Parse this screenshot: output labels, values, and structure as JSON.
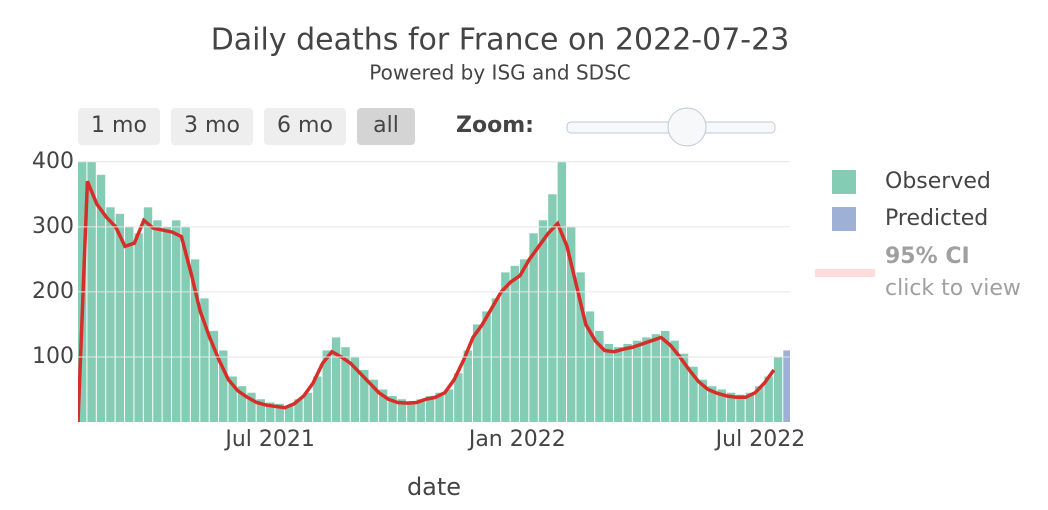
{
  "chart_data": {
    "type": "bar",
    "title": "Daily deaths for France on 2022-07-23",
    "subtitle": "Powered by ISG and SDSC",
    "buttons": [
      "1 mo",
      "3 mo",
      "6 mo",
      "all"
    ],
    "active_button": 3,
    "zoom_label": "Zoom:",
    "x_label": "date",
    "xlim": [
      "2021-02-08",
      "2022-07-23"
    ],
    "xticks": [
      {
        "value": "2021-07-01",
        "label": "Jul 2021"
      },
      {
        "value": "2022-01-01",
        "label": "Jan 2022"
      },
      {
        "value": "2022-07-01",
        "label": "Jul 2022"
      }
    ],
    "ylim": [
      0,
      415
    ],
    "yticks": [
      100,
      200,
      300,
      400
    ],
    "grid": true,
    "legend": "right",
    "x": [
      "2021-02-08",
      "2021-02-15",
      "2021-02-22",
      "2021-03-01",
      "2021-03-08",
      "2021-03-15",
      "2021-03-22",
      "2021-03-29",
      "2021-04-05",
      "2021-04-12",
      "2021-04-19",
      "2021-04-26",
      "2021-05-03",
      "2021-05-10",
      "2021-05-17",
      "2021-05-24",
      "2021-05-31",
      "2021-06-07",
      "2021-06-14",
      "2021-06-21",
      "2021-06-28",
      "2021-07-05",
      "2021-07-12",
      "2021-07-19",
      "2021-07-26",
      "2021-08-02",
      "2021-08-09",
      "2021-08-16",
      "2021-08-23",
      "2021-08-30",
      "2021-09-06",
      "2021-09-13",
      "2021-09-20",
      "2021-09-27",
      "2021-10-04",
      "2021-10-11",
      "2021-10-18",
      "2021-10-25",
      "2021-11-01",
      "2021-11-08",
      "2021-11-15",
      "2021-11-22",
      "2021-11-29",
      "2021-12-06",
      "2021-12-13",
      "2021-12-20",
      "2021-12-27",
      "2022-01-03",
      "2022-01-10",
      "2022-01-17",
      "2022-01-24",
      "2022-01-31",
      "2022-02-07",
      "2022-02-14",
      "2022-02-21",
      "2022-02-28",
      "2022-03-07",
      "2022-03-14",
      "2022-03-21",
      "2022-03-28",
      "2022-04-04",
      "2022-04-11",
      "2022-04-18",
      "2022-04-25",
      "2022-05-02",
      "2022-05-09",
      "2022-05-16",
      "2022-05-23",
      "2022-05-30",
      "2022-06-06",
      "2022-06-13",
      "2022-06-20",
      "2022-06-27",
      "2022-07-04",
      "2022-07-11"
    ],
    "series": [
      {
        "name": "Observed",
        "color": "#84cdb4",
        "values": [
          400,
          400,
          380,
          330,
          320,
          300,
          290,
          330,
          310,
          300,
          310,
          300,
          250,
          190,
          140,
          110,
          70,
          55,
          45,
          35,
          30,
          28,
          25,
          35,
          45,
          70,
          110,
          130,
          115,
          100,
          80,
          65,
          50,
          40,
          35,
          32,
          35,
          40,
          45,
          50,
          75,
          110,
          150,
          170,
          190,
          230,
          240,
          250,
          290,
          310,
          350,
          400,
          300,
          230,
          170,
          140,
          120,
          115,
          120,
          125,
          130,
          135,
          140,
          125,
          105,
          85,
          65,
          55,
          50,
          45,
          42,
          45,
          55,
          70,
          100
        ]
      },
      {
        "name": "Predicted",
        "color": "#9fb0d6",
        "x": [
          "2022-07-18"
        ],
        "values": [
          110
        ]
      }
    ],
    "trend": {
      "color": "#d62f2a",
      "values": [
        0,
        370,
        335,
        315,
        300,
        270,
        275,
        310,
        298,
        295,
        292,
        285,
        230,
        170,
        130,
        95,
        65,
        48,
        38,
        30,
        26,
        24,
        22,
        28,
        40,
        60,
        90,
        108,
        100,
        90,
        75,
        60,
        45,
        35,
        30,
        29,
        30,
        35,
        38,
        45,
        65,
        95,
        130,
        150,
        175,
        200,
        215,
        225,
        250,
        270,
        290,
        305,
        270,
        210,
        150,
        125,
        110,
        108,
        112,
        115,
        120,
        125,
        130,
        118,
        100,
        80,
        62,
        50,
        44,
        40,
        38,
        38,
        45,
        60,
        80
      ]
    },
    "ci": {
      "name": "95% CI",
      "hint": "click to view",
      "color": "#ffdcdc"
    }
  }
}
